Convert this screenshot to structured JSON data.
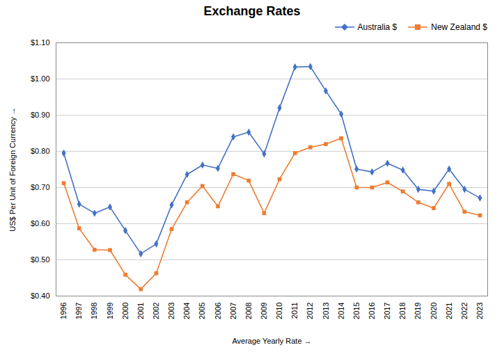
{
  "chart_data": {
    "type": "line",
    "title": "Exchange Rates",
    "xlabel": "Average Yearly Rate",
    "ylabel": "US$ Per Unit of Foreign Currency",
    "x": [
      1996,
      1997,
      1998,
      1999,
      2000,
      2001,
      2002,
      2003,
      2004,
      2005,
      2006,
      2007,
      2008,
      2009,
      2010,
      2011,
      2012,
      2013,
      2014,
      2015,
      2016,
      2017,
      2018,
      2019,
      2020,
      2021,
      2022,
      2023
    ],
    "series": [
      {
        "name": "Australia $",
        "color": "#4472C4",
        "marker": "diamond",
        "values": [
          0.795,
          0.654,
          0.629,
          0.646,
          0.581,
          0.517,
          0.544,
          0.652,
          0.736,
          0.762,
          0.753,
          0.84,
          0.853,
          0.793,
          0.92,
          1.033,
          1.034,
          0.967,
          0.903,
          0.751,
          0.743,
          0.767,
          0.748,
          0.695,
          0.69,
          0.751,
          0.695,
          0.671
        ]
      },
      {
        "name": "New Zealand $",
        "color": "#ED7D31",
        "marker": "square",
        "values": [
          0.712,
          0.587,
          0.528,
          0.527,
          0.459,
          0.419,
          0.463,
          0.585,
          0.659,
          0.704,
          0.648,
          0.737,
          0.719,
          0.629,
          0.723,
          0.795,
          0.811,
          0.82,
          0.836,
          0.7,
          0.7,
          0.714,
          0.689,
          0.659,
          0.643,
          0.71,
          0.633,
          0.623
        ]
      }
    ],
    "xlim": [
      1995.5,
      2023.5
    ],
    "xticks": [
      1996,
      1997,
      1998,
      1999,
      2000,
      2001,
      2002,
      2003,
      2004,
      2005,
      2006,
      2007,
      2008,
      2009,
      2010,
      2011,
      2012,
      2013,
      2014,
      2015,
      2016,
      2017,
      2018,
      2019,
      2020,
      2021,
      2022,
      2023
    ],
    "ylim": [
      0.4,
      1.1
    ],
    "yticks": [
      {
        "value": 0.4,
        "label": "$0.40"
      },
      {
        "value": 0.5,
        "label": "$0.50"
      },
      {
        "value": 0.6,
        "label": "$0.60"
      },
      {
        "value": 0.7,
        "label": "$0.70"
      },
      {
        "value": 0.8,
        "label": "$0.80"
      },
      {
        "value": 0.9,
        "label": "$0.90"
      },
      {
        "value": 1.0,
        "label": "$1.00"
      },
      {
        "value": 1.1,
        "label": "$1.10"
      }
    ],
    "grid": "y",
    "legend": "upper right"
  }
}
